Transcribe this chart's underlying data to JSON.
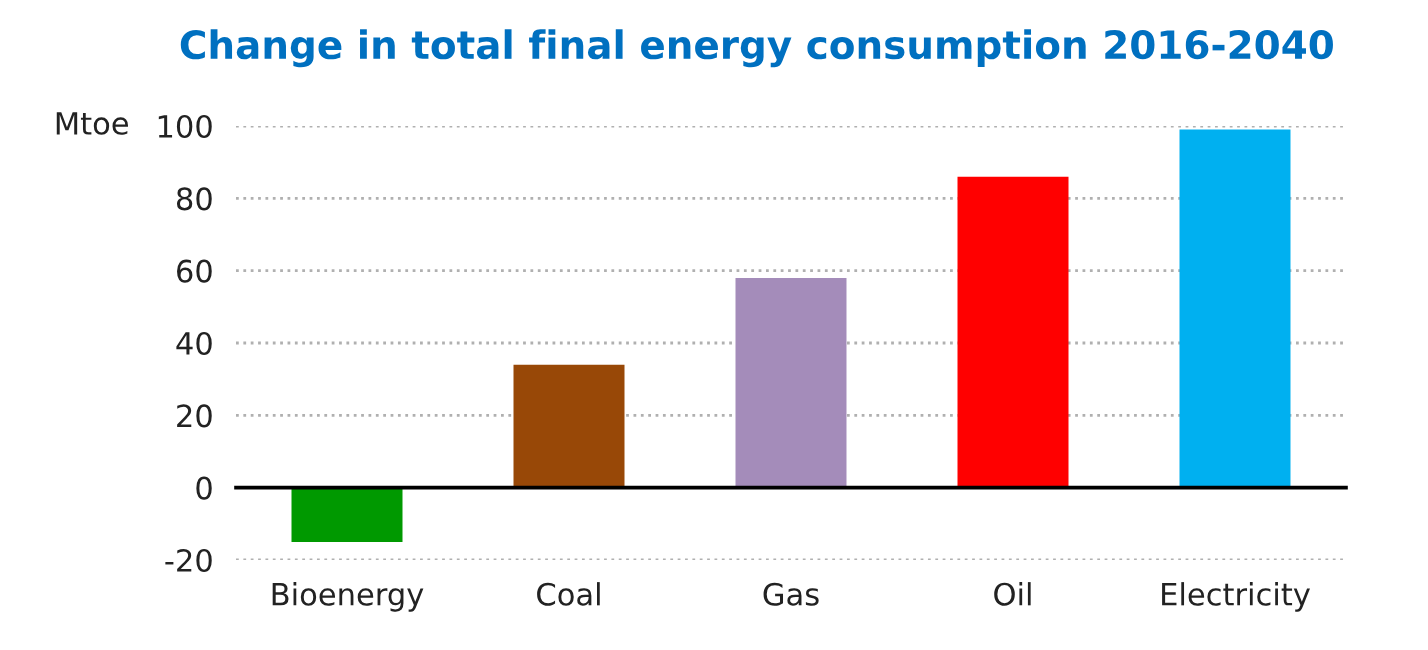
{
  "chart_data": {
    "type": "bar",
    "title": "Change in total final energy consumption 2016-2040",
    "ylabel": "Mtoe",
    "categories": [
      "Bioenergy",
      "Coal",
      "Gas",
      "Oil",
      "Electricity"
    ],
    "values": [
      -15,
      34,
      58,
      86,
      99
    ],
    "colors": [
      "#009900",
      "#984807",
      "#a48cba",
      "#ff0000",
      "#00b0f0"
    ],
    "ylim": [
      -20,
      100
    ],
    "yticks": [
      -20,
      0,
      20,
      40,
      60,
      80,
      100
    ],
    "grid": "y"
  }
}
